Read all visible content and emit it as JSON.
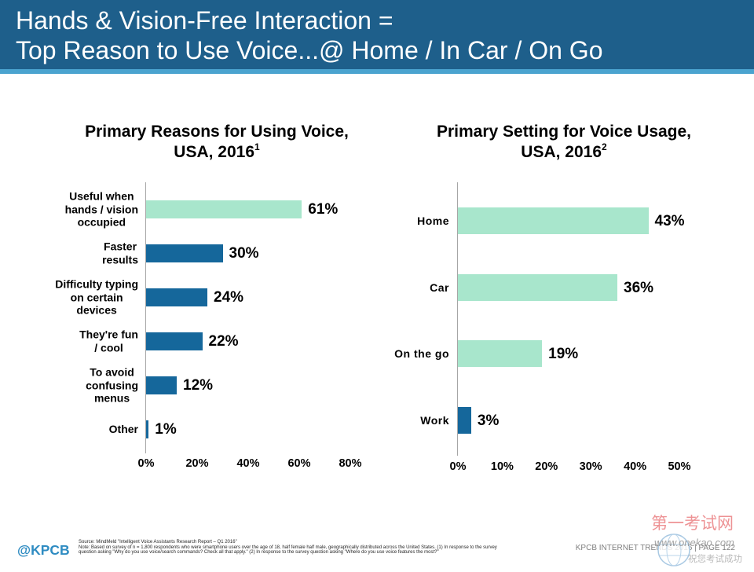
{
  "header": {
    "title_lines": [
      "Hands & Vision-Free Interaction =",
      "Top Reason to Use Voice...@ Home / In Car / On Go"
    ],
    "colors": {
      "band": "#1e5f8b",
      "stripe": "#4aa3cf"
    }
  },
  "chart_data": [
    {
      "type": "bar",
      "orientation": "horizontal",
      "title_lines": [
        "Primary Reasons for Using Voice,",
        "USA, 2016"
      ],
      "title_footnote": "1",
      "categories": [
        "Useful when\nhands / vision\noccupied",
        "Faster\nresults",
        "Difficulty typing\non certain\ndevices",
        "They're fun\n/ cool",
        "To avoid\nconfusing\nmenus",
        "Other"
      ],
      "values": [
        61,
        30,
        24,
        22,
        12,
        1
      ],
      "value_labels": [
        "61%",
        "30%",
        "24%",
        "22%",
        "12%",
        "1%"
      ],
      "x_ticks": [
        0,
        20,
        40,
        60,
        80
      ],
      "x_tick_labels": [
        "0%",
        "20%",
        "40%",
        "60%",
        "80%"
      ],
      "xlim": [
        0,
        80
      ],
      "grid": false,
      "bar_colors": [
        "#a8e6cc",
        "#15679b",
        "#15679b",
        "#15679b",
        "#15679b",
        "#15679b"
      ]
    },
    {
      "type": "bar",
      "orientation": "horizontal",
      "title_lines": [
        "Primary Setting for Voice Usage,",
        "USA, 2016"
      ],
      "title_footnote": "2",
      "categories": [
        "Home",
        "Car",
        "On the go",
        "Work"
      ],
      "values": [
        43,
        36,
        19,
        3
      ],
      "value_labels": [
        "43%",
        "36%",
        "19%",
        "3%"
      ],
      "x_ticks": [
        0,
        10,
        20,
        30,
        40,
        50
      ],
      "x_tick_labels": [
        "0%",
        "10%",
        "20%",
        "30%",
        "40%",
        "50%"
      ],
      "xlim": [
        0,
        50
      ],
      "grid": false,
      "bar_colors": [
        "#a8e6cc",
        "#a8e6cc",
        "#a8e6cc",
        "#15679b"
      ]
    }
  ],
  "footer": {
    "logo_text": "@KPCB",
    "source": "Source: MindMeld \"Intelligent Voice Assistants Research Report – Q1 2016\"",
    "note_lines": [
      "Note: Based on survey of n = 1,800 respondents who were smartphone users over the age of 18, half female half male, geographically distributed across the United States. (1) In response to the survey",
      "question asking \"Why do you use voice/search commands? Check all that apply.\" (2) In response to the survey question asking \"Where do you use voice features the most?\""
    ],
    "page_label": "KPCB INTERNET TRENDS 2016 | PAGE 122",
    "colors": {
      "logo": "#2f8cc2"
    }
  },
  "watermark": {
    "name": "第一考试网",
    "url": "www.onekao.com",
    "slogan": "祝您考试成功"
  }
}
